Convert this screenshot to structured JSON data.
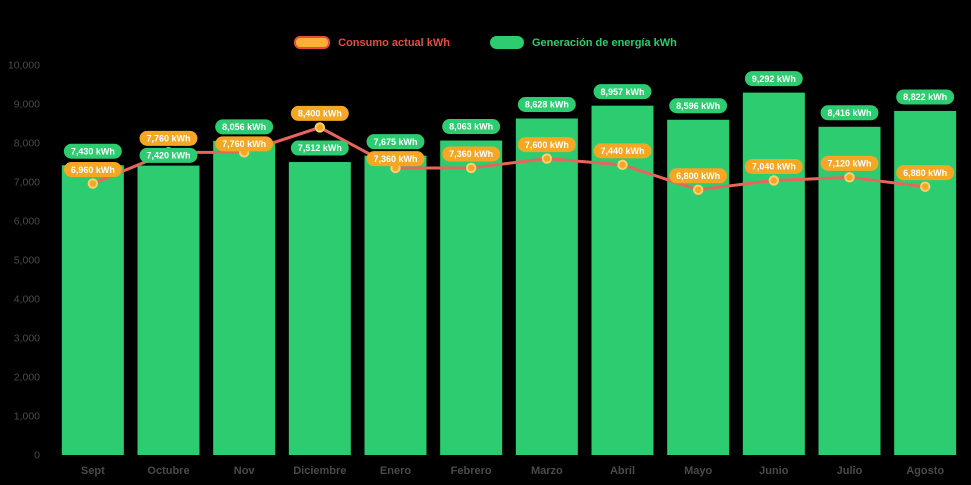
{
  "legend": {
    "consumption": "Consumo actual kWh",
    "generation": "Generación de energía kWh"
  },
  "colors": {
    "background": "#000000",
    "bar": "#2ECC71",
    "line": "#E8655B",
    "marker_fill": "#F5A623",
    "marker_ring": "#FFCF70",
    "pill_generation": "#2ECC71",
    "pill_consumption": "#F5A623",
    "pill_text": "#FFFFFF",
    "axis_text": "#4A4A4A",
    "legend_consumption_text": "#E74C3C",
    "legend_generation_text": "#2ECC71",
    "consumption_swatch_fill": "#F8B133",
    "consumption_swatch_border": "#E74C3C"
  },
  "chart_data": {
    "type": "bar",
    "subtype": "bar-with-line-overlay",
    "categories": [
      "Sept",
      "Octubre",
      "Nov",
      "Diciembre",
      "Enero",
      "Febrero",
      "Marzo",
      "Abril",
      "Mayo",
      "Junio",
      "Julio",
      "Agosto"
    ],
    "series": [
      {
        "name": "Generación de energía kWh",
        "type": "bar",
        "values": [
          7430,
          7420,
          8056,
          7512,
          7675,
          8063,
          8628,
          8957,
          8596,
          9292,
          8416,
          8822
        ],
        "labels": [
          "7,430 kWh",
          "7,420 kWh",
          "8,056 kWh",
          "7,512 kWh",
          "7,675 kWh",
          "8,063 kWh",
          "8,628 kWh",
          "8,957 kWh",
          "8,596 kWh",
          "9,292 kWh",
          "8,416 kWh",
          "8,822 kWh"
        ]
      },
      {
        "name": "Consumo actual kWh",
        "type": "line",
        "values": [
          6960,
          7760,
          7760,
          8400,
          7360,
          7360,
          7600,
          7440,
          6800,
          7040,
          7120,
          6880
        ],
        "labels": [
          "6,960 kWh",
          "7,760 kWh",
          "7,760 kWh",
          "8,400 kWh",
          "7,360 kWh",
          "7,360 kWh",
          "7,600 kWh",
          "7,440 kWh",
          "6,800 kWh",
          "7,040 kWh",
          "7,120 kWh",
          "6,880 kWh"
        ]
      }
    ],
    "y_ticks": [
      "0",
      "1,000",
      "2,000",
      "3,000",
      "4,000",
      "5,000",
      "6,000",
      "7,000",
      "8,000",
      "9,000",
      "10,000"
    ],
    "ylim": [
      0,
      10000
    ],
    "grid": false,
    "legend_position": "top"
  }
}
